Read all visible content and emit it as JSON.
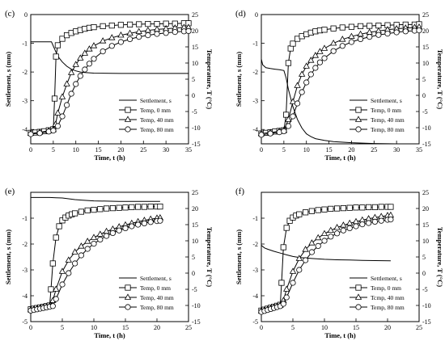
{
  "chart_data": [
    {
      "type": "line",
      "panel": "(c)",
      "xlabel": "Time, t (h)",
      "ylabel": "Settlement, s (mm)",
      "y2label": "Temperature, T (°C)",
      "xlim": [
        0,
        35
      ],
      "xticks": [
        0,
        5,
        10,
        15,
        20,
        25,
        30,
        35
      ],
      "ylim": [
        -4.5,
        0
      ],
      "yticks": [
        -4,
        -3,
        -2,
        -1,
        0
      ],
      "y2lim": [
        -15,
        25
      ],
      "y2ticks": [
        -15,
        -10,
        -5,
        0,
        5,
        10,
        15,
        20,
        25
      ],
      "legend_position": "bottom-right",
      "settlement": {
        "name": "Settlement, s",
        "x": [
          0,
          1,
          3,
          4.6,
          5.3,
          6,
          7,
          8,
          9,
          10,
          11,
          12,
          14,
          20,
          30,
          35
        ],
        "y": [
          -0.95,
          -0.95,
          -0.95,
          -0.95,
          -1.2,
          -1.45,
          -1.65,
          -1.8,
          -1.9,
          -1.96,
          -2.0,
          -2.02,
          -2.04,
          -2.05,
          -2.05,
          -2.05
        ]
      },
      "series": [
        {
          "name": "Temp, 0 mm",
          "x": [
            0,
            1,
            2,
            3,
            4,
            5,
            5.3,
            5.6,
            6,
            7,
            8,
            9,
            10,
            11,
            12,
            13,
            14,
            16,
            18,
            20,
            22,
            24,
            26,
            28,
            30,
            32,
            34,
            35
          ],
          "y": [
            -11.6,
            -11.5,
            -11.3,
            -11.1,
            -10.8,
            -10.5,
            -1,
            12,
            15.5,
            17.5,
            18.6,
            19.3,
            19.8,
            20.2,
            20.6,
            20.9,
            21.1,
            21.4,
            21.6,
            21.8,
            21.9,
            22.0,
            22.1,
            22.1,
            22.2,
            22.2,
            22.3,
            22.3
          ]
        },
        {
          "name": "Temp, 40 mm",
          "x": [
            0,
            2,
            4,
            5,
            5.5,
            6,
            7,
            8,
            9,
            10,
            11,
            12,
            13,
            14,
            16,
            18,
            20,
            22,
            24,
            26,
            28,
            30,
            32,
            34,
            35
          ],
          "y": [
            -11.8,
            -11.4,
            -11.0,
            -10.6,
            -9,
            -5.5,
            -0.5,
            3.5,
            7,
            9.5,
            11.5,
            13,
            14.3,
            15.3,
            16.8,
            17.8,
            18.6,
            19.2,
            19.7,
            20.1,
            20.4,
            20.6,
            20.8,
            21.0,
            21.0
          ]
        },
        {
          "name": "Temp, 80 mm",
          "x": [
            0,
            2,
            4,
            5,
            6,
            7,
            8,
            9,
            10,
            11,
            12,
            13,
            14,
            16,
            18,
            20,
            22,
            24,
            26,
            28,
            30,
            32,
            34,
            35
          ],
          "y": [
            -12.0,
            -11.7,
            -11.2,
            -10.9,
            -9.5,
            -6.5,
            -3,
            0.5,
            3.5,
            6,
            8,
            9.8,
            11.3,
            13.6,
            15.3,
            16.5,
            17.4,
            18.1,
            18.6,
            19.0,
            19.3,
            19.6,
            19.8,
            19.9
          ]
        }
      ]
    },
    {
      "type": "line",
      "panel": "(d)",
      "xlabel": "Time, t (h)",
      "ylabel": "Settlement, s (mm)",
      "y2label": "Temperature, T (°C)",
      "xlim": [
        0,
        35
      ],
      "xticks": [
        0,
        5,
        10,
        15,
        20,
        25,
        30,
        35
      ],
      "ylim": [
        -4.5,
        0
      ],
      "yticks": [
        -4,
        -3,
        -2,
        -1,
        0
      ],
      "y2lim": [
        -15,
        25
      ],
      "y2ticks": [
        -15,
        -10,
        -5,
        0,
        5,
        10,
        15,
        20,
        25
      ],
      "legend_position": "bottom-right",
      "settlement": {
        "name": "Settlement, s",
        "x": [
          0,
          0.3,
          1,
          2,
          3,
          4,
          5,
          5.5,
          6,
          7,
          8,
          9,
          10,
          11,
          12,
          14,
          16,
          20,
          25,
          30,
          35
        ],
        "y": [
          -1.55,
          -1.75,
          -1.85,
          -1.88,
          -1.9,
          -1.92,
          -1.95,
          -2.2,
          -2.6,
          -3.2,
          -3.65,
          -3.95,
          -4.15,
          -4.25,
          -4.32,
          -4.38,
          -4.42,
          -4.46,
          -4.49,
          -4.5,
          -4.5
        ]
      },
      "series": [
        {
          "name": "Temp, 0 mm",
          "x": [
            0,
            1,
            2,
            3,
            4,
            5,
            5.5,
            6,
            6.5,
            7,
            8,
            9,
            10,
            11,
            12,
            13,
            14,
            16,
            18,
            20,
            22,
            24,
            26,
            28,
            30,
            32,
            34,
            35
          ],
          "y": [
            -11.8,
            -11.6,
            -11.4,
            -11.2,
            -11.0,
            -10.8,
            -6,
            10,
            14.5,
            16,
            17.5,
            18.3,
            18.9,
            19.4,
            19.8,
            20.1,
            20.3,
            20.7,
            21.0,
            21.2,
            21.4,
            21.5,
            21.6,
            21.7,
            21.8,
            21.9,
            21.9,
            22.0
          ]
        },
        {
          "name": "Temp, 40 mm",
          "x": [
            0,
            2,
            4,
            5,
            6,
            7,
            8,
            9,
            10,
            11,
            12,
            13,
            14,
            16,
            18,
            20,
            22,
            24,
            26,
            28,
            30,
            32,
            34,
            35
          ],
          "y": [
            -11.8,
            -11.5,
            -11.1,
            -10.8,
            -7.5,
            -2,
            3,
            6.5,
            9,
            10.8,
            12.3,
            13.5,
            14.5,
            16.1,
            17.3,
            18.2,
            18.9,
            19.5,
            19.9,
            20.3,
            20.6,
            20.8,
            21.0,
            21.1
          ]
        },
        {
          "name": "Temp, 80 mm",
          "x": [
            0,
            2,
            4,
            5,
            6,
            7,
            8,
            9,
            10,
            11,
            12,
            13,
            14,
            16,
            18,
            20,
            22,
            24,
            26,
            28,
            30,
            32,
            34,
            35
          ],
          "y": [
            -12.2,
            -11.8,
            -11.4,
            -11.1,
            -9.5,
            -6.5,
            -2.5,
            1,
            4,
            6.5,
            8.5,
            10.2,
            11.5,
            13.7,
            15.3,
            16.5,
            17.4,
            18.1,
            18.7,
            19.1,
            19.5,
            19.8,
            20.0,
            20.1
          ]
        }
      ]
    },
    {
      "type": "line",
      "panel": "(e)",
      "xlabel": "Time, t (h)",
      "ylabel": "Settlement, s (mm)",
      "y2label": "Temperature, T (°C)",
      "xlim": [
        0,
        25
      ],
      "xticks": [
        0,
        5,
        10,
        15,
        20,
        25
      ],
      "ylim": [
        -5,
        0
      ],
      "yticks": [
        -5,
        -4,
        -3,
        -2,
        -1
      ],
      "y2lim": [
        -15,
        25
      ],
      "y2ticks": [
        -15,
        -10,
        -5,
        0,
        5,
        10,
        15,
        20,
        25
      ],
      "legend_position": "bottom-right",
      "settlement": {
        "name": "Settlement, s",
        "x": [
          0,
          1,
          2,
          3,
          4,
          5,
          6,
          7,
          8,
          10,
          12,
          14,
          16,
          18,
          20.5
        ],
        "y": [
          -0.2,
          -0.2,
          -0.2,
          -0.2,
          -0.21,
          -0.22,
          -0.25,
          -0.28,
          -0.3,
          -0.33,
          -0.34,
          -0.35,
          -0.35,
          -0.35,
          -0.35
        ]
      },
      "series": [
        {
          "name": "Temp, 0 mm",
          "x": [
            0,
            0.5,
            1,
            1.5,
            2,
            2.5,
            3,
            3.2,
            3.5,
            4,
            4.5,
            5,
            5.5,
            6,
            6.5,
            7,
            8,
            9,
            10,
            11,
            12,
            13,
            14,
            15,
            16,
            17,
            18,
            19,
            20,
            20.5
          ],
          "y": [
            -11.2,
            -11.0,
            -10.8,
            -10.6,
            -10.4,
            -10.2,
            -10,
            -5,
            3,
            11,
            14.5,
            16.3,
            17.2,
            17.8,
            18.2,
            18.5,
            19.0,
            19.4,
            19.6,
            19.8,
            20.0,
            20.1,
            20.2,
            20.3,
            20.4,
            20.5,
            20.5,
            20.6,
            20.6,
            20.6
          ]
        },
        {
          "name": "Temp, 40 mm",
          "x": [
            0,
            0.5,
            1,
            1.5,
            2,
            2.5,
            3,
            3.5,
            4,
            5,
            6,
            7,
            8,
            9,
            10,
            11,
            12,
            13,
            14,
            15,
            16,
            17,
            18,
            19,
            20,
            20.5
          ],
          "y": [
            -11.4,
            -11.2,
            -11.0,
            -10.8,
            -10.6,
            -10.4,
            -10.2,
            -8.5,
            -5,
            0.5,
            4,
            6.5,
            8.3,
            9.8,
            11.0,
            12.0,
            12.9,
            13.6,
            14.3,
            14.9,
            15.4,
            15.9,
            16.3,
            16.7,
            17.0,
            17.1
          ]
        },
        {
          "name": "Temp, 80 mm",
          "x": [
            0,
            0.5,
            1,
            1.5,
            2,
            2.5,
            3,
            3.5,
            4,
            5,
            6,
            7,
            8,
            9,
            10,
            11,
            12,
            13,
            14,
            15,
            16,
            17,
            18,
            19,
            20,
            20.5
          ],
          "y": [
            -11.6,
            -11.4,
            -11.2,
            -11.0,
            -10.8,
            -10.6,
            -10.4,
            -10.2,
            -8,
            -3.5,
            0,
            3,
            5.5,
            7.5,
            9.1,
            10.4,
            11.5,
            12.4,
            13.2,
            13.9,
            14.5,
            15.0,
            15.4,
            15.8,
            16.1,
            16.2
          ]
        }
      ]
    },
    {
      "type": "line",
      "panel": "(f)",
      "xlabel": "Time, t (h)",
      "ylabel": "Settlement, s (mm)",
      "y2label": "Temperature, T (°C)",
      "xlim": [
        0,
        25
      ],
      "xticks": [
        0,
        5,
        10,
        15,
        20,
        25
      ],
      "ylim": [
        -5,
        0
      ],
      "yticks": [
        -5,
        -4,
        -3,
        -2,
        -1
      ],
      "y2lim": [
        -15,
        25
      ],
      "y2ticks": [
        -15,
        -10,
        -5,
        0,
        5,
        10,
        15,
        20,
        25
      ],
      "legend_position": "bottom-right",
      "settlement": {
        "name": "Settlement, s",
        "x": [
          0,
          0.5,
          1,
          2,
          3,
          4,
          5,
          6,
          8,
          10,
          12,
          14,
          16,
          18,
          20.5
        ],
        "y": [
          -2.05,
          -2.15,
          -2.2,
          -2.28,
          -2.35,
          -2.42,
          -2.48,
          -2.52,
          -2.56,
          -2.59,
          -2.61,
          -2.62,
          -2.63,
          -2.64,
          -2.65
        ]
      },
      "series": [
        {
          "name": "Temp, 0 mm",
          "x": [
            0,
            0.5,
            1,
            1.5,
            2,
            2.5,
            3,
            3.2,
            3.5,
            4,
            4.5,
            5,
            5.5,
            6,
            7,
            8,
            9,
            10,
            11,
            12,
            13,
            14,
            15,
            16,
            17,
            18,
            19,
            20,
            20.5
          ],
          "y": [
            -11.6,
            -11.3,
            -11.0,
            -10.7,
            -10.4,
            -10.1,
            -9.8,
            -3,
            8,
            14,
            16.2,
            17.2,
            17.8,
            18.2,
            18.8,
            19.2,
            19.5,
            19.7,
            19.9,
            20.0,
            20.1,
            20.2,
            20.3,
            20.3,
            20.4,
            20.4,
            20.5,
            20.5,
            20.5
          ]
        },
        {
          "name": "Tcmp, 40 mm",
          "x": [
            0,
            0.5,
            1,
            1.5,
            2,
            2.5,
            3,
            3.5,
            4,
            5,
            6,
            7,
            8,
            9,
            10,
            11,
            12,
            13,
            14,
            15,
            16,
            17,
            18,
            19,
            20,
            20.5
          ],
          "y": [
            -11.8,
            -11.5,
            -11.2,
            -10.9,
            -10.6,
            -10.3,
            -10.0,
            -8.5,
            -5,
            0.5,
            4.5,
            7.3,
            9.3,
            10.9,
            12.2,
            13.2,
            14.1,
            14.8,
            15.4,
            15.9,
            16.4,
            16.8,
            17.2,
            17.5,
            17.8,
            17.9
          ]
        },
        {
          "name": "Temp, 80 mm",
          "x": [
            0,
            0.5,
            1,
            1.5,
            2,
            2.5,
            3,
            3.5,
            4,
            5,
            6,
            7,
            8,
            9,
            10,
            11,
            12,
            13,
            14,
            15,
            16,
            17,
            18,
            19,
            20,
            20.5
          ],
          "y": [
            -12.0,
            -11.7,
            -11.4,
            -11.1,
            -10.8,
            -10.5,
            -10.2,
            -9.5,
            -7.5,
            -3,
            1,
            4,
            6.5,
            8.4,
            10.0,
            11.3,
            12.3,
            13.2,
            13.9,
            14.5,
            15.1,
            15.5,
            15.9,
            16.2,
            16.5,
            16.6
          ]
        }
      ]
    }
  ]
}
